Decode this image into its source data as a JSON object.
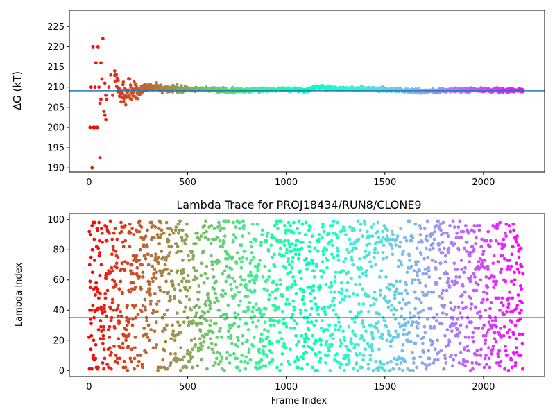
{
  "chart_data": [
    {
      "type": "scatter",
      "title": "",
      "xlabel": "",
      "ylabel": "ΔG (kT)",
      "xlim": [
        -100,
        2310
      ],
      "ylim": [
        189,
        229
      ],
      "xticks": [
        "0",
        "500",
        "1000",
        "1500",
        "2000"
      ],
      "yticks": [
        "190",
        "195",
        "200",
        "205",
        "210",
        "215",
        "220",
        "225"
      ],
      "reference_line": {
        "y": 209.1,
        "color": "#1f77b4"
      },
      "colormap": "rainbow reversed (red at frame 0 to violet at frame 2200)",
      "series": [
        {
          "x": [
            5,
            10,
            15,
            20,
            25,
            30,
            35,
            40,
            45,
            50,
            55,
            60,
            65,
            70,
            75,
            80,
            85,
            90,
            100,
            110,
            120,
            130,
            150,
            175,
            200,
            250,
            300,
            400,
            500,
            600,
            700,
            800,
            900,
            1000,
            1100,
            1150,
            1200,
            1300,
            1400,
            1500,
            1600,
            1700,
            1800,
            1900,
            2000,
            2100,
            2200
          ],
          "y": [
            200,
            210,
            190,
            220,
            200,
            210,
            216,
            200,
            220,
            210,
            206,
            216,
            212,
            222,
            204,
            211,
            208,
            207,
            210,
            213,
            208,
            214,
            209,
            208,
            209,
            209,
            210,
            209.5,
            209.5,
            209.5,
            209.2,
            209.2,
            209.3,
            209.5,
            209.2,
            210,
            209.7,
            209.7,
            209.5,
            209.4,
            209.2,
            209.0,
            209.2,
            209.3,
            209.3,
            209.2,
            209.2
          ]
        }
      ]
    },
    {
      "type": "scatter",
      "title": "Lambda Trace for PROJ18434/RUN8/CLONE9",
      "xlabel": "Frame Index",
      "ylabel": "Lambda Index",
      "xlim": [
        -100,
        2310
      ],
      "ylim": [
        -4,
        104
      ],
      "xticks": [
        "0",
        "500",
        "1000",
        "1500",
        "2000"
      ],
      "yticks": [
        "0",
        "20",
        "40",
        "60",
        "80",
        "100"
      ],
      "reference_line": {
        "y": 35,
        "color": "#1f77b4"
      },
      "colormap": "rainbow reversed (red at frame 0 to violet at frame 2200)",
      "series": [
        {
          "x": [
            0,
            2200
          ],
          "y_range": [
            0,
            99
          ],
          "n_points": 2201,
          "description_of_values": "one lambda index (0–99) per frame, spread uniformly across the range"
        }
      ]
    }
  ]
}
